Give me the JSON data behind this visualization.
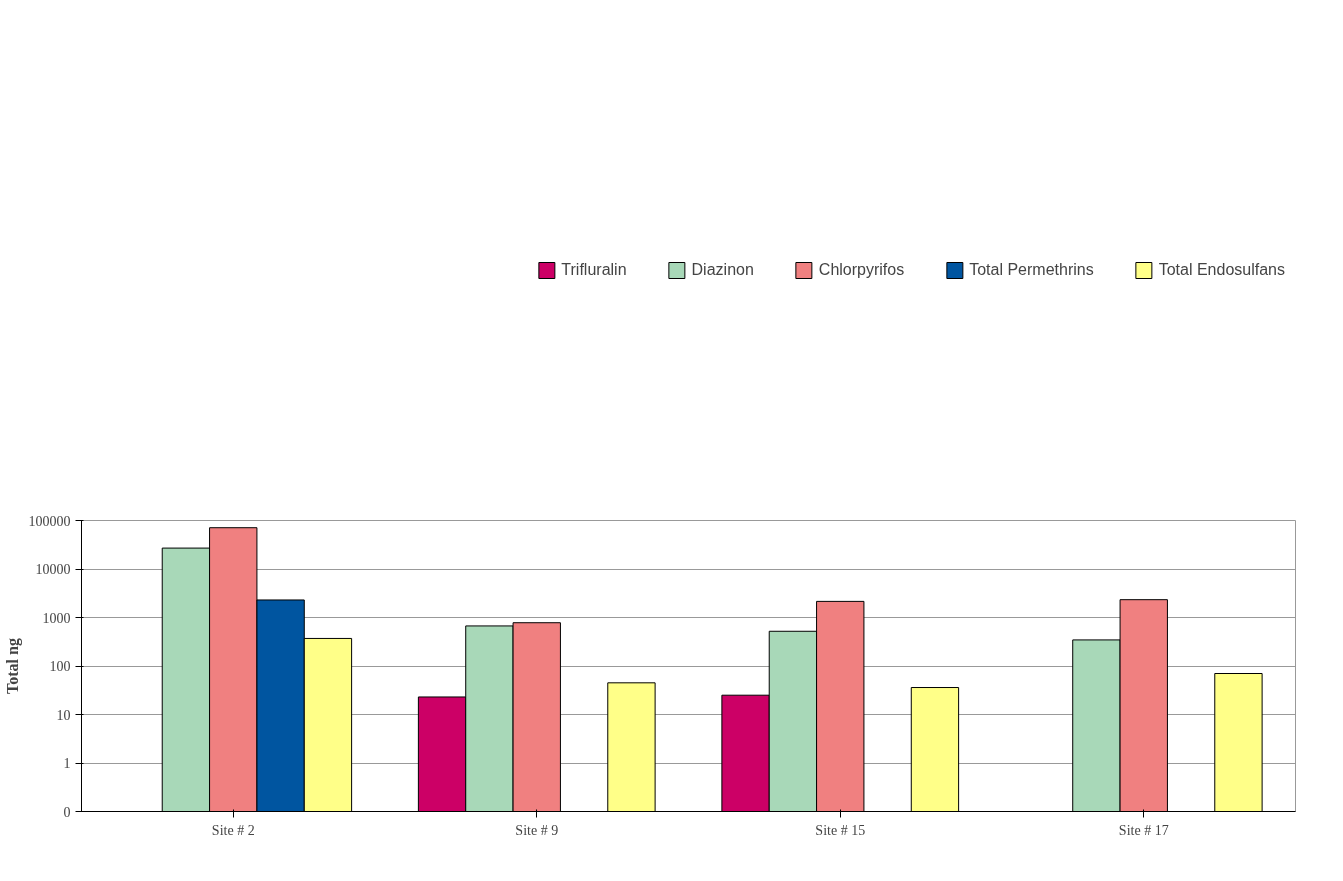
{
  "chart_data": {
    "type": "bar",
    "ylabel": "Total ng",
    "categories": [
      "Site # 2",
      "Site # 9",
      "Site # 15",
      "Site # 17"
    ],
    "log": true,
    "ylim": [
      0.1,
      100000
    ],
    "yticks": [
      {
        "value": 0.1,
        "label": "0"
      },
      1,
      10,
      100,
      1000,
      10000,
      100000
    ],
    "grid": "y",
    "legend": "top",
    "series": [
      {
        "name": "Trifluralin",
        "color": "#cc0066",
        "values": [
          null,
          23,
          25,
          null
        ]
      },
      {
        "name": "Diazinon",
        "color": "#a8d8b8",
        "values": [
          27000,
          670,
          520,
          345
        ]
      },
      {
        "name": "Chlorpyrifos",
        "color": "#f08080",
        "values": [
          71000,
          780,
          2150,
          2330
        ]
      },
      {
        "name": "Total Permethrins",
        "color": "#0055a0",
        "values": [
          2300,
          null,
          null,
          null
        ]
      },
      {
        "name": "Total Endosulfans",
        "color": "#ffff88",
        "values": [
          370,
          45,
          36,
          70
        ]
      }
    ]
  }
}
